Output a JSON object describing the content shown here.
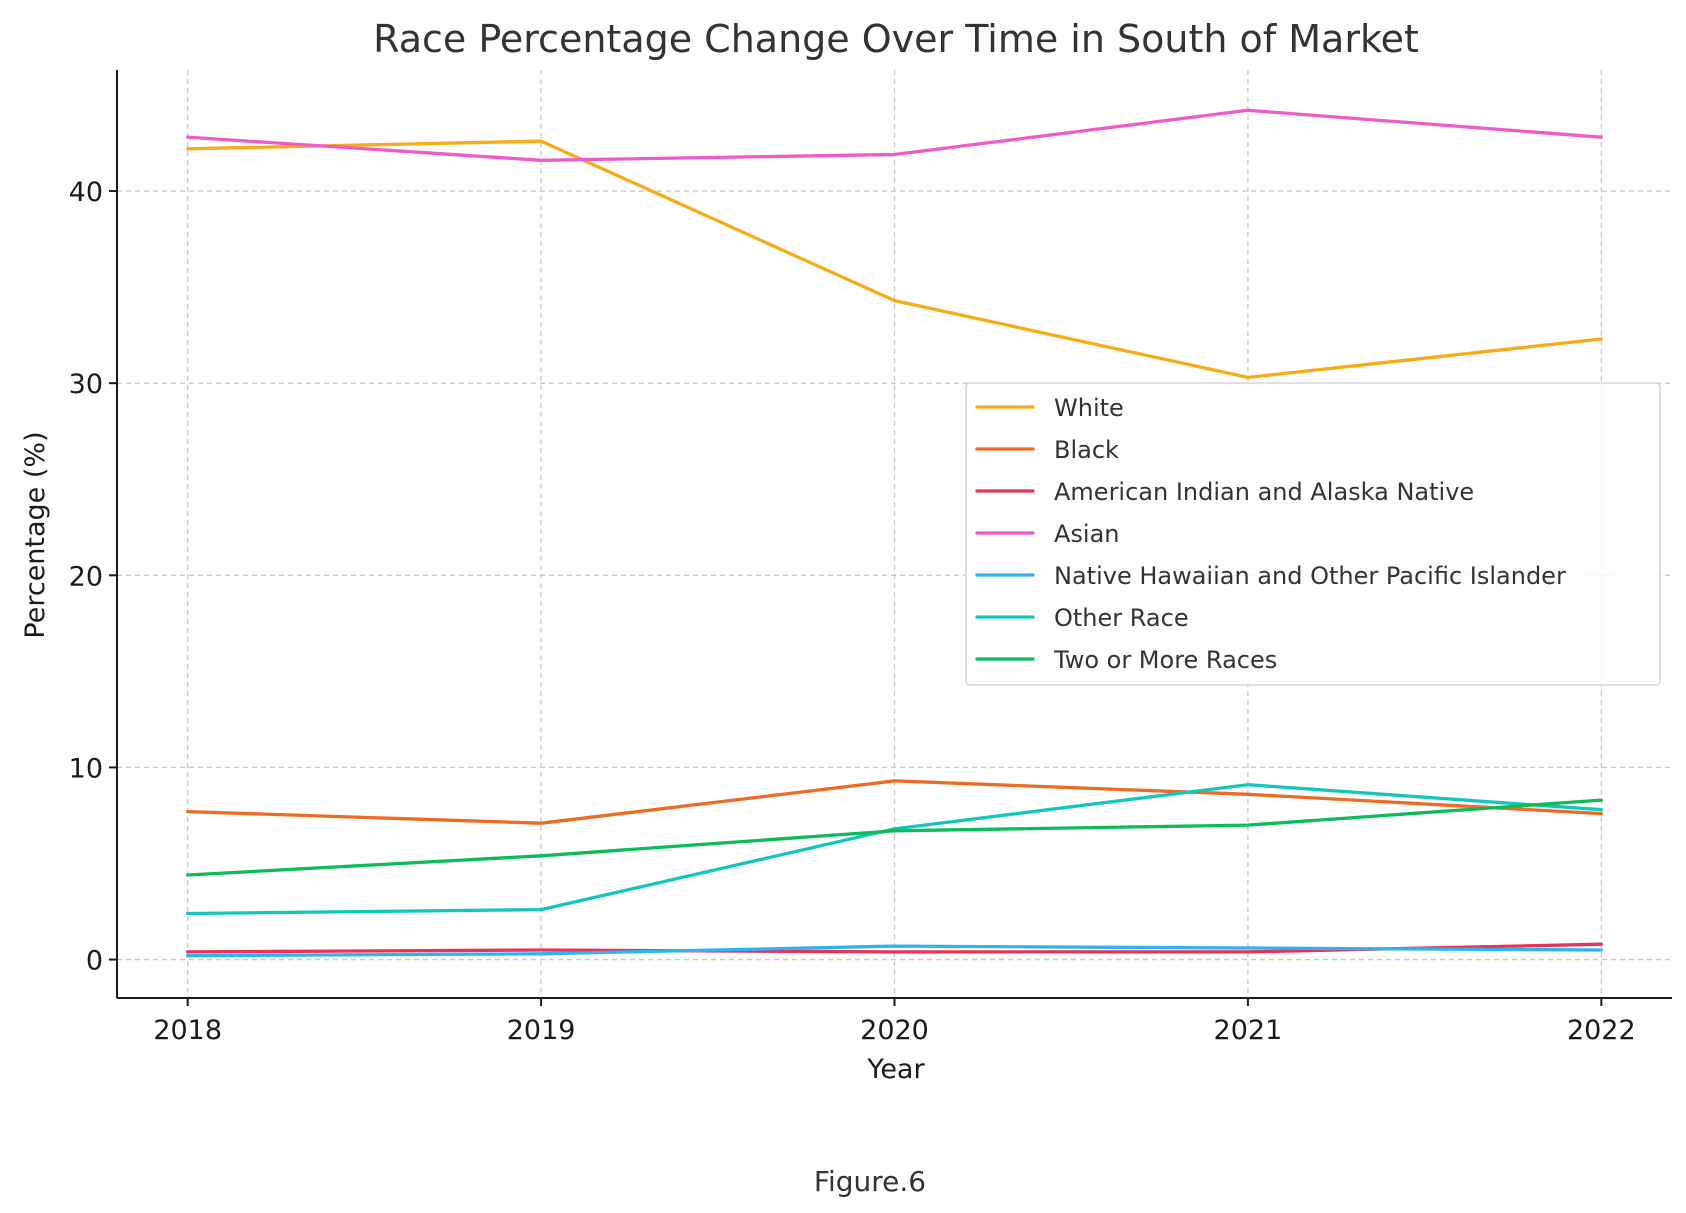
{
  "chart_data": {
    "type": "line",
    "title": "Race Percentage Change Over Time in South of Market",
    "xlabel": "Year",
    "ylabel": "Percentage (%)",
    "x": [
      2018,
      2019,
      2020,
      2021,
      2022
    ],
    "x_tick_labels": [
      "2018",
      "2019",
      "2020",
      "2021",
      "2022"
    ],
    "y_ticks": [
      0,
      10,
      20,
      30,
      40
    ],
    "y_tick_labels": [
      "0",
      "10",
      "20",
      "30",
      "40"
    ],
    "xlim": [
      2017.8,
      2022.2
    ],
    "ylim": [
      -2,
      46.3
    ],
    "grid": true,
    "legend_position": "center-right",
    "series": [
      {
        "name": "White",
        "color": "#F9AA17",
        "values": [
          42.2,
          42.6,
          34.3,
          30.3,
          32.3
        ]
      },
      {
        "name": "Black",
        "color": "#EE6A25",
        "values": [
          7.7,
          7.1,
          9.3,
          8.6,
          7.6
        ]
      },
      {
        "name": "American Indian and Alaska Native",
        "color": "#E8325A",
        "values": [
          0.4,
          0.5,
          0.4,
          0.4,
          0.8
        ]
      },
      {
        "name": "Asian",
        "color": "#EF5BC8",
        "values": [
          42.8,
          41.6,
          41.9,
          44.2,
          42.8
        ]
      },
      {
        "name": "Native Hawaiian and Other Pacific Islander",
        "color": "#2DB5F2",
        "values": [
          0.2,
          0.3,
          0.7,
          0.6,
          0.5
        ]
      },
      {
        "name": "Other Race",
        "color": "#13C6BA",
        "values": [
          2.4,
          2.6,
          6.8,
          9.1,
          7.8
        ]
      },
      {
        "name": "Two or More Races",
        "color": "#0DBB5A",
        "values": [
          4.4,
          5.4,
          6.7,
          7.0,
          8.3
        ]
      }
    ]
  },
  "caption": "Figure.6"
}
